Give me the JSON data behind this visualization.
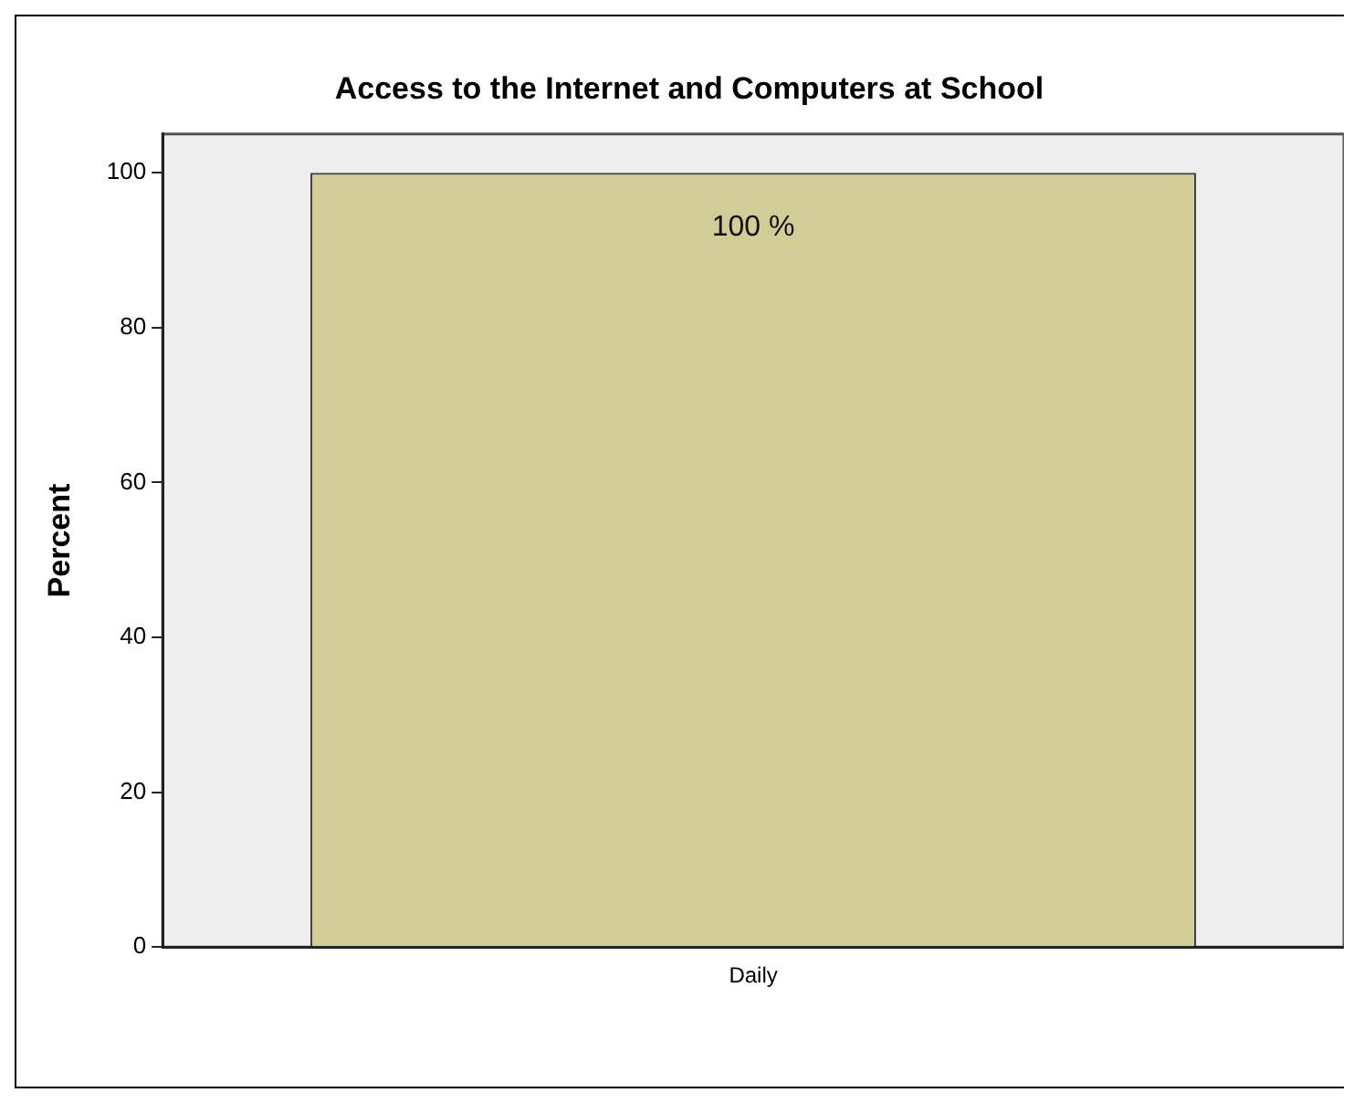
{
  "chart_data": {
    "type": "bar",
    "title": "Access to the Internet and Computers at School",
    "ylabel": "Percent",
    "categories": [
      "Daily"
    ],
    "values": [
      100
    ],
    "value_labels": [
      "100 %"
    ],
    "color": "#d2cd96",
    "ylim": [
      0,
      105
    ],
    "yticks": [
      0,
      20,
      40,
      60,
      80,
      100
    ],
    "grid": false,
    "legend": false
  }
}
